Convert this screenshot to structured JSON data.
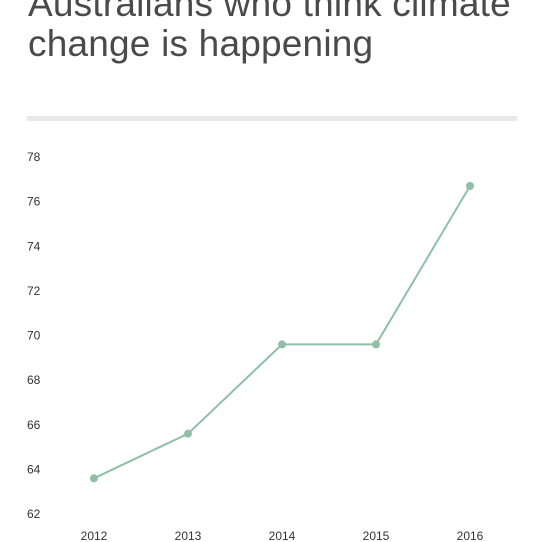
{
  "chart_data": {
    "type": "line",
    "title": "Australians who think climate change is happening",
    "x": [
      "2012",
      "2013",
      "2014",
      "2015",
      "2016"
    ],
    "series": [
      {
        "values": [
          63.6,
          65.6,
          69.6,
          69.6,
          76.7
        ]
      }
    ],
    "yticks": [
      62,
      64,
      66,
      68,
      70,
      72,
      74,
      76,
      78
    ],
    "ylim": [
      62,
      78
    ],
    "grid": false,
    "line_color": "#8fc0a6"
  }
}
